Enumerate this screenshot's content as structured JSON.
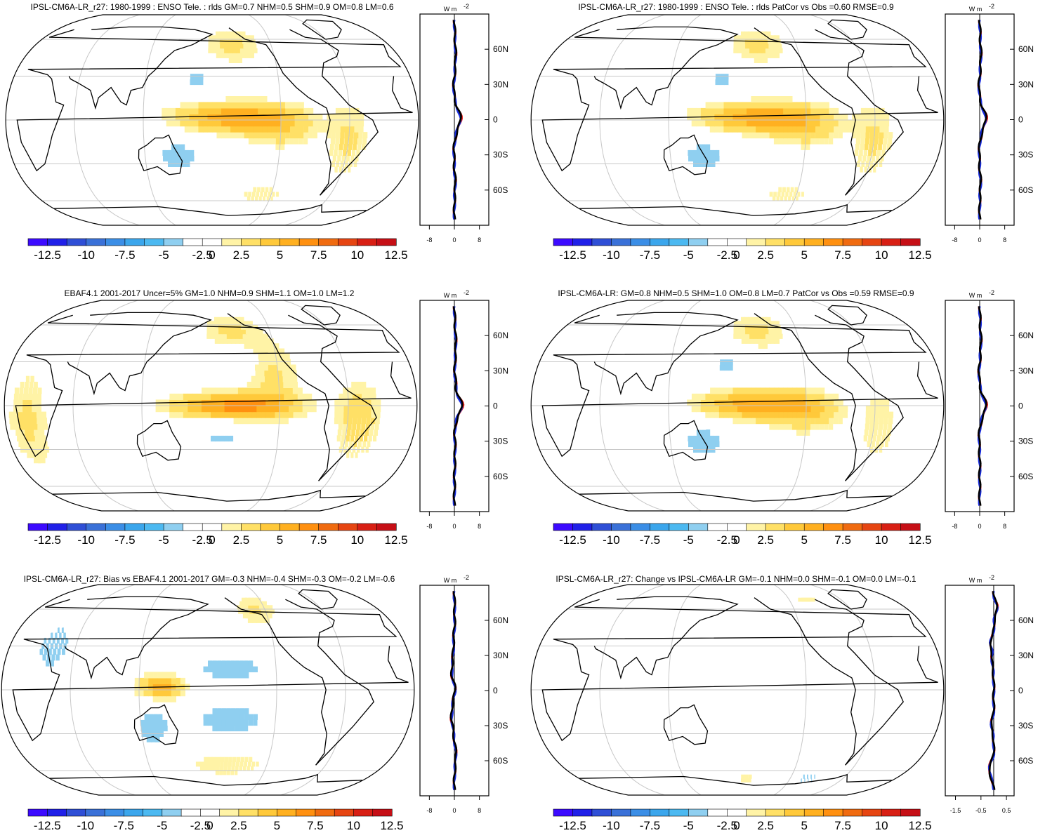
{
  "figure": {
    "colorbar_colors": [
      "#3c0aff",
      "#2020e8",
      "#2f4fd6",
      "#3a71d8",
      "#3b8ee6",
      "#3ba6ec",
      "#4cb9f1",
      "#8fcff0",
      "#ffffff",
      "#ffffff",
      "#fff3a6",
      "#ffe066",
      "#ffc93a",
      "#ffb020",
      "#ff9010",
      "#f06b10",
      "#e64512",
      "#d81f14",
      "#c60f16"
    ],
    "colorbar_labels": [
      "-12.5",
      "-10",
      "-7.5",
      "-5",
      "-2.5",
      "0",
      "2.5",
      "5",
      "7.5",
      "10",
      "12.5"
    ],
    "unit_label": "W m",
    "unit_exp": "-2",
    "land_color": "#ffffff",
    "line_colors": {
      "obs": "#e8201c",
      "model": "#1a2ee0",
      "mean": "#000000"
    }
  },
  "chart_data": [
    {
      "type": "map+zonal-profile",
      "title": "IPSL-CM6A-LR_r27: 1980-1999 : ENSO Tele. : rlds GM=0.7 NHM=0.5 SHM=0.9 OM=0.8 LM=0.6",
      "colorbar_range": [
        -13.75,
        13.75
      ],
      "profile": {
        "lat_ticks": [
          "60N",
          "30N",
          "0",
          "30S",
          "60S"
        ],
        "lat_values": [
          60,
          30,
          0,
          -30,
          -60
        ],
        "x_ticks": [
          "-8",
          "0",
          "8"
        ],
        "x_values": [
          -8,
          0,
          8
        ],
        "xlim": [
          -11,
          11
        ]
      },
      "features": [
        {
          "kind": "warm",
          "lon": 195,
          "lat": 2,
          "dlon": 70,
          "dlat": 7,
          "amp": 6
        },
        {
          "kind": "warm",
          "lon": 240,
          "lat": -5,
          "dlon": 45,
          "dlat": 10,
          "amp": 3
        },
        {
          "kind": "warm",
          "lon": 200,
          "lat": 55,
          "dlon": 45,
          "dlat": 12,
          "amp": 2.5
        },
        {
          "kind": "warm",
          "lon": 230,
          "lat": -55,
          "dlon": 40,
          "dlat": 6,
          "amp": 2
        },
        {
          "kind": "cool",
          "lon": 165,
          "lat": 28,
          "dlon": 30,
          "dlat": 8,
          "amp": -2.5
        },
        {
          "kind": "cool",
          "lon": 150,
          "lat": -25,
          "dlon": 35,
          "dlat": 10,
          "amp": -3
        },
        {
          "kind": "warm",
          "lon": 300,
          "lat": -15,
          "dlon": 25,
          "dlat": 20,
          "amp": 2.5
        }
      ]
    },
    {
      "type": "map+zonal-profile",
      "title": "IPSL-CM6A-LR_r27: 1980-1999 : ENSO Tele. : rlds PatCor vs Obs =0.60 RMSE=0.9",
      "colorbar_range": [
        -13.75,
        13.75
      ],
      "profile": {
        "lat_ticks": [
          "60N",
          "30N",
          "0",
          "30S",
          "60S"
        ],
        "lat_values": [
          60,
          30,
          0,
          -30,
          -60
        ],
        "x_ticks": [
          "-8",
          "0",
          "8"
        ],
        "x_values": [
          -8,
          0,
          8
        ],
        "xlim": [
          -11,
          11
        ]
      },
      "features": [
        {
          "kind": "warm",
          "lon": 195,
          "lat": 2,
          "dlon": 70,
          "dlat": 7,
          "amp": 6
        },
        {
          "kind": "warm",
          "lon": 240,
          "lat": -5,
          "dlon": 45,
          "dlat": 10,
          "amp": 3
        },
        {
          "kind": "warm",
          "lon": 200,
          "lat": 55,
          "dlon": 45,
          "dlat": 12,
          "amp": 2.5
        },
        {
          "kind": "warm",
          "lon": 230,
          "lat": -55,
          "dlon": 40,
          "dlat": 6,
          "amp": 2
        },
        {
          "kind": "cool",
          "lon": 165,
          "lat": 28,
          "dlon": 30,
          "dlat": 8,
          "amp": -2.5
        },
        {
          "kind": "cool",
          "lon": 150,
          "lat": -25,
          "dlon": 35,
          "dlat": 10,
          "amp": -3
        },
        {
          "kind": "warm",
          "lon": 300,
          "lat": -15,
          "dlon": 25,
          "dlat": 20,
          "amp": 2.5
        }
      ]
    },
    {
      "type": "map+zonal-profile",
      "title": "EBAF4.1 2001-2017 Uncer=5% GM=1.0 NHM=0.9 SHM=1.1 OM=1.0 LM=1.2",
      "colorbar_range": [
        -13.75,
        13.75
      ],
      "profile": {
        "lat_ticks": [
          "60N",
          "30N",
          "0",
          "30S",
          "60S"
        ],
        "lat_values": [
          60,
          30,
          0,
          -30,
          -60
        ],
        "x_ticks": [
          "-8",
          "0",
          "8"
        ],
        "x_values": [
          -8,
          0,
          8
        ],
        "xlim": [
          -11,
          11
        ]
      },
      "features": [
        {
          "kind": "warm",
          "lon": 200,
          "lat": 0,
          "dlon": 75,
          "dlat": 6,
          "amp": 7
        },
        {
          "kind": "warm",
          "lon": 235,
          "lat": 20,
          "dlon": 35,
          "dlat": 18,
          "amp": 2.5
        },
        {
          "kind": "warm",
          "lon": 200,
          "lat": 55,
          "dlon": 45,
          "dlat": 12,
          "amp": 2.5
        },
        {
          "kind": "warm",
          "lon": 310,
          "lat": -10,
          "dlon": 30,
          "dlat": 20,
          "amp": 3
        },
        {
          "kind": "warm",
          "lon": 20,
          "lat": -10,
          "dlon": 25,
          "dlat": 25,
          "amp": 2.5
        },
        {
          "kind": "cool",
          "lon": 190,
          "lat": -22,
          "dlon": 40,
          "dlat": 7,
          "amp": -2.5
        },
        {
          "kind": "cool",
          "lon": 190,
          "lat": 30,
          "dlon": 40,
          "dlat": 8,
          "amp": -2
        }
      ]
    },
    {
      "type": "map+zonal-profile",
      "title": "IPSL-CM6A-LR: GM=0.8 NHM=0.5 SHM=1.0 OM=0.8 LM=0.7 PatCor vs Obs =0.59 RMSE=0.9",
      "colorbar_range": [
        -13.75,
        13.75
      ],
      "profile": {
        "lat_ticks": [
          "60N",
          "30N",
          "0",
          "30S",
          "60S"
        ],
        "lat_values": [
          60,
          30,
          0,
          -30,
          -60
        ],
        "x_ticks": [
          "-8",
          "0",
          "8"
        ],
        "x_values": [
          -8,
          0,
          8
        ],
        "xlim": [
          -11,
          11
        ]
      },
      "features": [
        {
          "kind": "warm",
          "lon": 195,
          "lat": 1,
          "dlon": 70,
          "dlat": 7,
          "amp": 6
        },
        {
          "kind": "warm",
          "lon": 240,
          "lat": -5,
          "dlon": 45,
          "dlat": 10,
          "amp": 3
        },
        {
          "kind": "warm",
          "lon": 200,
          "lat": 55,
          "dlon": 45,
          "dlat": 12,
          "amp": 2.5
        },
        {
          "kind": "cool",
          "lon": 170,
          "lat": 28,
          "dlon": 30,
          "dlat": 8,
          "amp": -2.5
        },
        {
          "kind": "cool",
          "lon": 150,
          "lat": -25,
          "dlon": 35,
          "dlat": 10,
          "amp": -3
        },
        {
          "kind": "warm",
          "lon": 305,
          "lat": -15,
          "dlon": 25,
          "dlat": 20,
          "amp": 2
        }
      ]
    },
    {
      "type": "map+zonal-profile",
      "title": "IPSL-CM6A-LR_r27: Bias vs EBAF4.1 2001-2017 GM=-0.3 NHM=-0.4 SHM=-0.3 OM=-0.2 LM=-0.6",
      "colorbar_range": [
        -13.75,
        13.75
      ],
      "profile": {
        "lat_ticks": [
          "60N",
          "30N",
          "0",
          "30S",
          "60S"
        ],
        "lat_values": [
          60,
          30,
          0,
          -30,
          -60
        ],
        "x_ticks": [
          "-8",
          "0",
          "8"
        ],
        "x_values": [
          -8,
          0,
          8
        ],
        "xlim": [
          -11,
          11
        ]
      },
      "features": [
        {
          "kind": "warm",
          "lon": 140,
          "lat": 2,
          "dlon": 30,
          "dlat": 6,
          "amp": 6
        },
        {
          "kind": "cool",
          "lon": 200,
          "lat": 15,
          "dlon": 60,
          "dlat": 8,
          "amp": -3
        },
        {
          "kind": "cool",
          "lon": 200,
          "lat": -20,
          "dlon": 60,
          "dlat": 10,
          "amp": -3
        },
        {
          "kind": "cool",
          "lon": 40,
          "lat": 30,
          "dlon": 40,
          "dlat": 25,
          "amp": -2.5
        },
        {
          "kind": "cool",
          "lon": 130,
          "lat": -25,
          "dlon": 25,
          "dlat": 12,
          "amp": -3
        },
        {
          "kind": "warm",
          "lon": 200,
          "lat": -55,
          "dlon": 70,
          "dlat": 8,
          "amp": 2
        },
        {
          "kind": "warm",
          "lon": 230,
          "lat": 60,
          "dlon": 30,
          "dlat": 10,
          "amp": 2.5
        }
      ]
    },
    {
      "type": "map+zonal-profile",
      "title": "IPSL-CM6A-LR_r27: Change vs IPSL-CM6A-LR GM=-0.1 NHM=0.0 SHM=-0.1 OM=0.0 LM=-0.1",
      "colorbar_range": [
        -13.75,
        13.75
      ],
      "profile": {
        "lat_ticks": [
          "60N",
          "30N",
          "0",
          "30S",
          "60S"
        ],
        "lat_values": [
          60,
          30,
          0,
          -30,
          -60
        ],
        "x_ticks": [
          "-1.5",
          "-0.5",
          "0.5"
        ],
        "x_values": [
          -1.5,
          -0.5,
          0.5
        ],
        "xlim": [
          -1.9,
          0.8
        ]
      },
      "features": [
        {
          "kind": "cool",
          "lon": 260,
          "lat": -68,
          "dlon": 40,
          "dlat": 5,
          "amp": -2.5
        },
        {
          "kind": "warm",
          "lon": 190,
          "lat": -68,
          "dlon": 25,
          "dlat": 4,
          "amp": 1.8
        },
        {
          "kind": "cool",
          "lon": 175,
          "lat": 40,
          "dlon": 25,
          "dlat": 4,
          "amp": -1.8
        },
        {
          "kind": "cool",
          "lon": 30,
          "lat": 25,
          "dlon": 15,
          "dlat": 6,
          "amp": -1.6
        },
        {
          "kind": "warm",
          "lon": 260,
          "lat": 70,
          "dlon": 25,
          "dlat": 5,
          "amp": 1.6
        },
        {
          "kind": "cool",
          "lon": 330,
          "lat": -30,
          "dlon": 20,
          "dlat": 5,
          "amp": -1.5
        }
      ]
    }
  ]
}
